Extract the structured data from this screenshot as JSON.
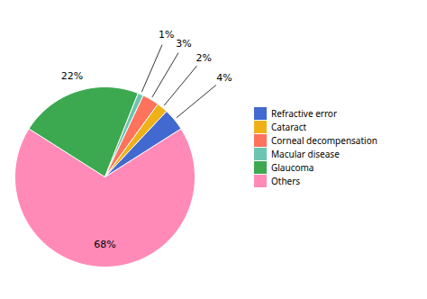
{
  "chart_data": {
    "type": "pie",
    "categories": [
      "Others",
      "Glaucoma",
      "Macular disease",
      "Corneal decompensation",
      "Cataract",
      "Refractive error"
    ],
    "values": [
      68,
      22,
      1,
      3,
      2,
      4
    ],
    "value_labels": [
      "68%",
      "22%",
      "1%",
      "3%",
      "2%",
      "4%"
    ],
    "data_labels": true,
    "legend": "right"
  }
}
